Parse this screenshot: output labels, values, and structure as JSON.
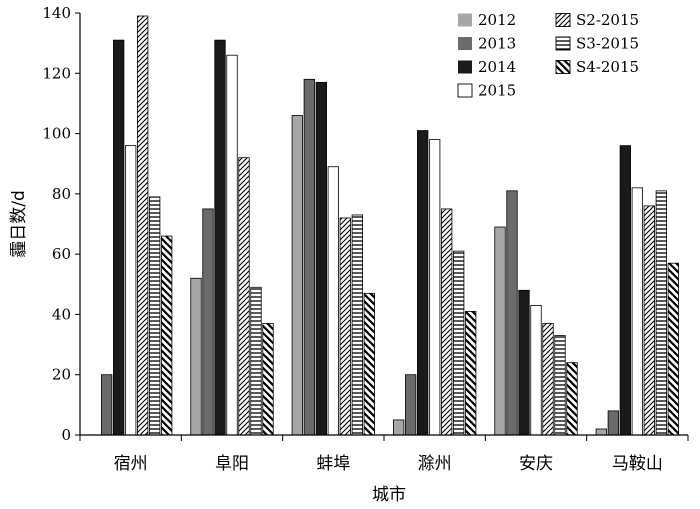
{
  "chart_data": {
    "type": "bar",
    "xlabel": "城市",
    "ylabel": "霾日数/d",
    "ylim": [
      0,
      140
    ],
    "yticks": [
      0,
      20,
      40,
      60,
      80,
      100,
      120,
      140
    ],
    "grid": false,
    "legend_position": "top-right",
    "categories": [
      "宿州",
      "阜阳",
      "蚌埠",
      "滁州",
      "安庆",
      "马鞍山"
    ],
    "series": [
      {
        "name": "2012",
        "fill": "solid",
        "color": "#a6a6a6",
        "values": [
          0,
          52,
          106,
          5,
          69,
          2
        ]
      },
      {
        "name": "2013",
        "fill": "solid",
        "color": "#6b6b6b",
        "values": [
          20,
          75,
          118,
          20,
          81,
          8
        ]
      },
      {
        "name": "2014",
        "fill": "solid",
        "color": "#1a1a1a",
        "values": [
          131,
          131,
          117,
          101,
          48,
          96
        ]
      },
      {
        "name": "2015",
        "fill": "solid",
        "color": "#ffffff",
        "values": [
          96,
          126,
          89,
          98,
          43,
          82
        ]
      },
      {
        "name": "S2-2015",
        "fill": "diagonal-thin",
        "color": "#000000",
        "values": [
          139,
          92,
          72,
          75,
          37,
          76
        ]
      },
      {
        "name": "S3-2015",
        "fill": "horizontal",
        "color": "#000000",
        "values": [
          79,
          49,
          73,
          61,
          33,
          81
        ]
      },
      {
        "name": "S4-2015",
        "fill": "diagonal-thick",
        "color": "#000000",
        "values": [
          66,
          37,
          47,
          41,
          24,
          57
        ]
      }
    ]
  }
}
